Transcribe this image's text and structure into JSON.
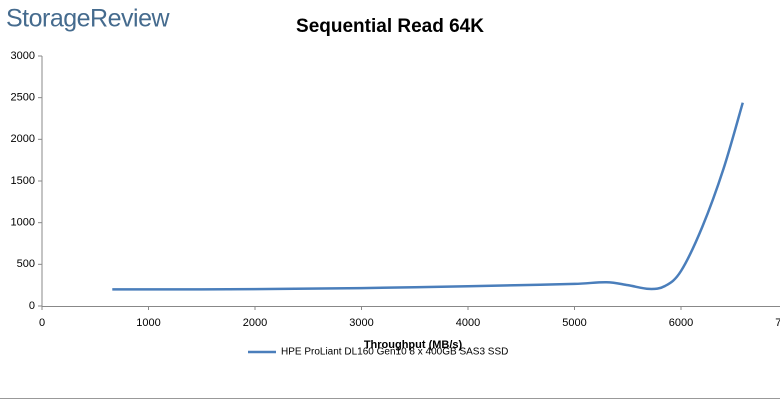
{
  "brand": "StorageReview",
  "chart_data": {
    "type": "line",
    "title": "Sequential Read 64K",
    "x_label": "Throughput (MB/s)",
    "xlim": [
      0,
      7000
    ],
    "xticks": [
      0,
      1000,
      2000,
      3000,
      4000,
      5000,
      6000,
      7000
    ],
    "ylim": [
      0,
      3000
    ],
    "yticks": [
      0,
      500,
      1000,
      1500,
      2000,
      2500,
      3000
    ],
    "grid": false,
    "legend": "bottom",
    "x": [
      660,
      1000,
      1500,
      2000,
      2500,
      3000,
      3500,
      4000,
      4500,
      5000,
      5300,
      5500,
      5700,
      5850,
      6000,
      6200,
      6400,
      6580
    ],
    "series": [
      {
        "name": "HPE ProLiant DL160 Gen10 8 x 400GB SAS3 SSD",
        "color": "#4a7ebb",
        "values": [
          200,
          200,
          200,
          203,
          208,
          215,
          225,
          237,
          250,
          265,
          285,
          250,
          205,
          240,
          420,
          950,
          1650,
          2440
        ]
      }
    ]
  }
}
